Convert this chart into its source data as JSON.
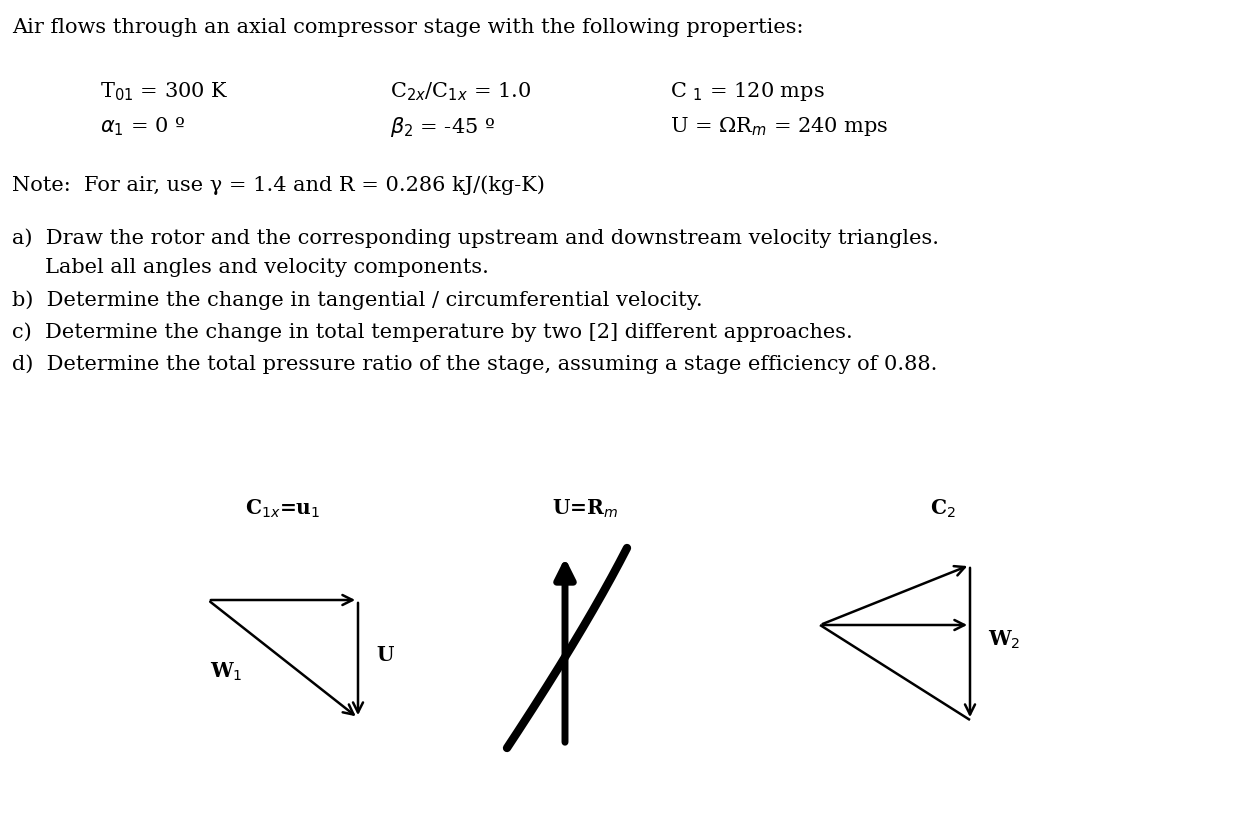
{
  "title": "Air flows through an axial compressor stage with the following properties:",
  "col1_row1": "T$_{01}$ = 300 K",
  "col1_row2": "$\\alpha_1$ = 0 º",
  "col2_row1": "C$_{2x}$/C$_{1x}$ = 1.0",
  "col2_row2": "$\\beta_2$ = -45 º",
  "col3_row1": "C $_{1}$ = 120 mps",
  "col3_row2": "U = ΩR$_{m}$ = 240 mps",
  "note": "Note:  For air, use γ = 1.4 and R = 0.286 kJ/(kg-K)",
  "item_a1": "a)  Draw the rotor and the corresponding upstream and downstream velocity triangles.",
  "item_a2": "     Label all angles and velocity components.",
  "item_b": "b)  Determine the change in tangential / circumferential velocity.",
  "item_c": "c)  Determine the change in total temperature by two [2] different approaches.",
  "item_d": "d)  Determine the total pressure ratio of the stage, assuming a stage efficiency of 0.88.",
  "lbl_C1x": "C$_{1x}$=u$_1$",
  "lbl_U_mid": "U=R$_m$",
  "lbl_C2": "C$_2$",
  "lbl_W1": "W$_1$",
  "lbl_U": "U",
  "lbl_W2": "W$_2$",
  "bg": "#ffffff",
  "tc": "#000000",
  "title_fs": 15.0,
  "body_fs": 15.0,
  "diag_fs": 14.5,
  "lw": 1.8
}
